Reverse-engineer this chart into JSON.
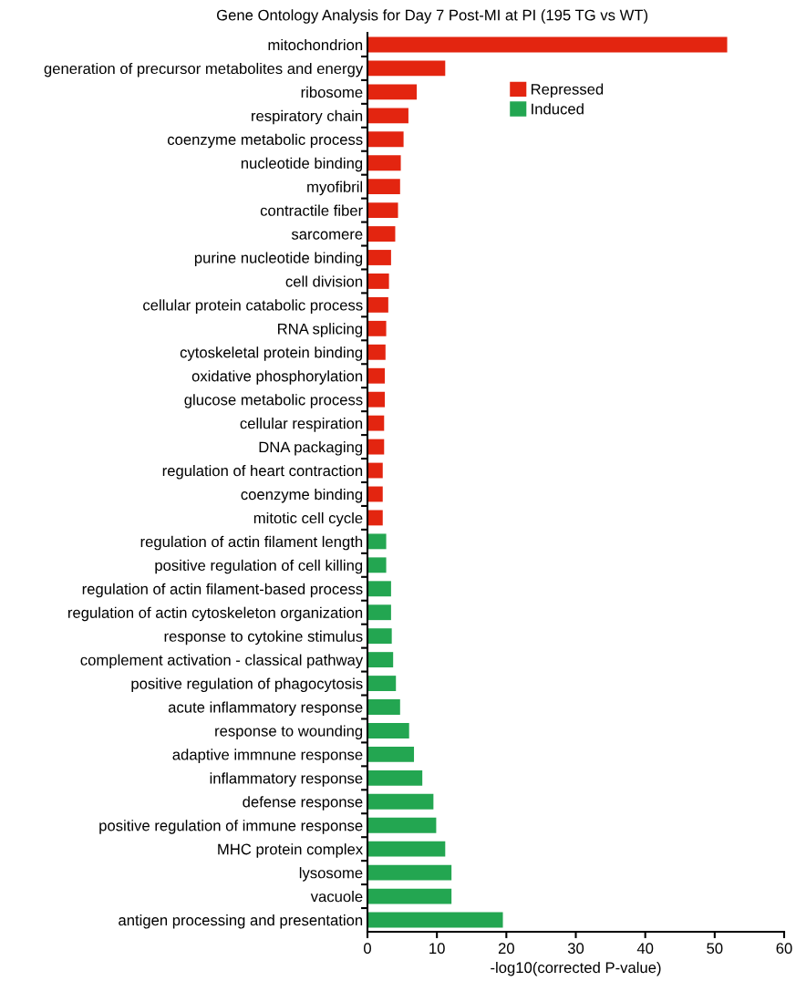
{
  "chart_data": {
    "type": "bar",
    "orientation": "horizontal",
    "title": "Gene Ontology Analysis for Day 7 Post-MI at PI (195 TG vs WT)",
    "xlabel": "-log10(corrected P-value)",
    "categories": [
      "mitochondrion",
      "generation of precursor metabolites and energy",
      "ribosome",
      "respiratory chain",
      "coenzyme metabolic process",
      "nucleotide binding",
      "myofibril",
      "contractile fiber",
      "sarcomere",
      "purine nucleotide binding",
      "cell division",
      "cellular protein catabolic process",
      "RNA splicing",
      "cytoskeletal protein binding",
      "oxidative phosphorylation",
      "glucose metabolic process",
      "cellular respiration",
      "DNA packaging",
      "regulation of heart contraction",
      "coenzyme binding",
      "mitotic cell cycle",
      "regulation of actin filament length",
      "positive regulation of cell killing",
      "regulation of actin filament-based process",
      "regulation of actin cytoskeleton organization",
      "response to cytokine stimulus",
      "complement activation - classical pathway",
      "positive regulation of phagocytosis",
      "acute inflammatory response",
      "response to wounding",
      "adaptive immnune response",
      "inflammatory response",
      "defense response",
      "positive regulation of immune response",
      "MHC protein complex",
      "lysosome",
      "vacuole",
      "antigen processing and presentation"
    ],
    "series": [
      {
        "name": "Repressed",
        "color": "#e32510",
        "values": [
          51.8,
          11.2,
          7.1,
          5.9,
          5.2,
          4.8,
          4.7,
          4.4,
          4.0,
          3.4,
          3.1,
          3.0,
          2.7,
          2.6,
          2.5,
          2.5,
          2.4,
          2.4,
          2.2,
          2.2,
          2.2,
          null,
          null,
          null,
          null,
          null,
          null,
          null,
          null,
          null,
          null,
          null,
          null,
          null,
          null,
          null,
          null,
          null
        ]
      },
      {
        "name": "Induced",
        "color": "#23a651",
        "values": [
          null,
          null,
          null,
          null,
          null,
          null,
          null,
          null,
          null,
          null,
          null,
          null,
          null,
          null,
          null,
          null,
          null,
          null,
          null,
          null,
          null,
          2.7,
          2.7,
          3.4,
          3.4,
          3.5,
          3.7,
          4.1,
          4.7,
          6.0,
          6.7,
          7.9,
          9.5,
          9.9,
          11.2,
          12.1,
          12.1,
          19.5
        ]
      }
    ],
    "xlim": [
      0,
      60
    ],
    "xticks": [
      0,
      10,
      20,
      30,
      40,
      50,
      60
    ],
    "legend": "top right",
    "grid": false
  }
}
